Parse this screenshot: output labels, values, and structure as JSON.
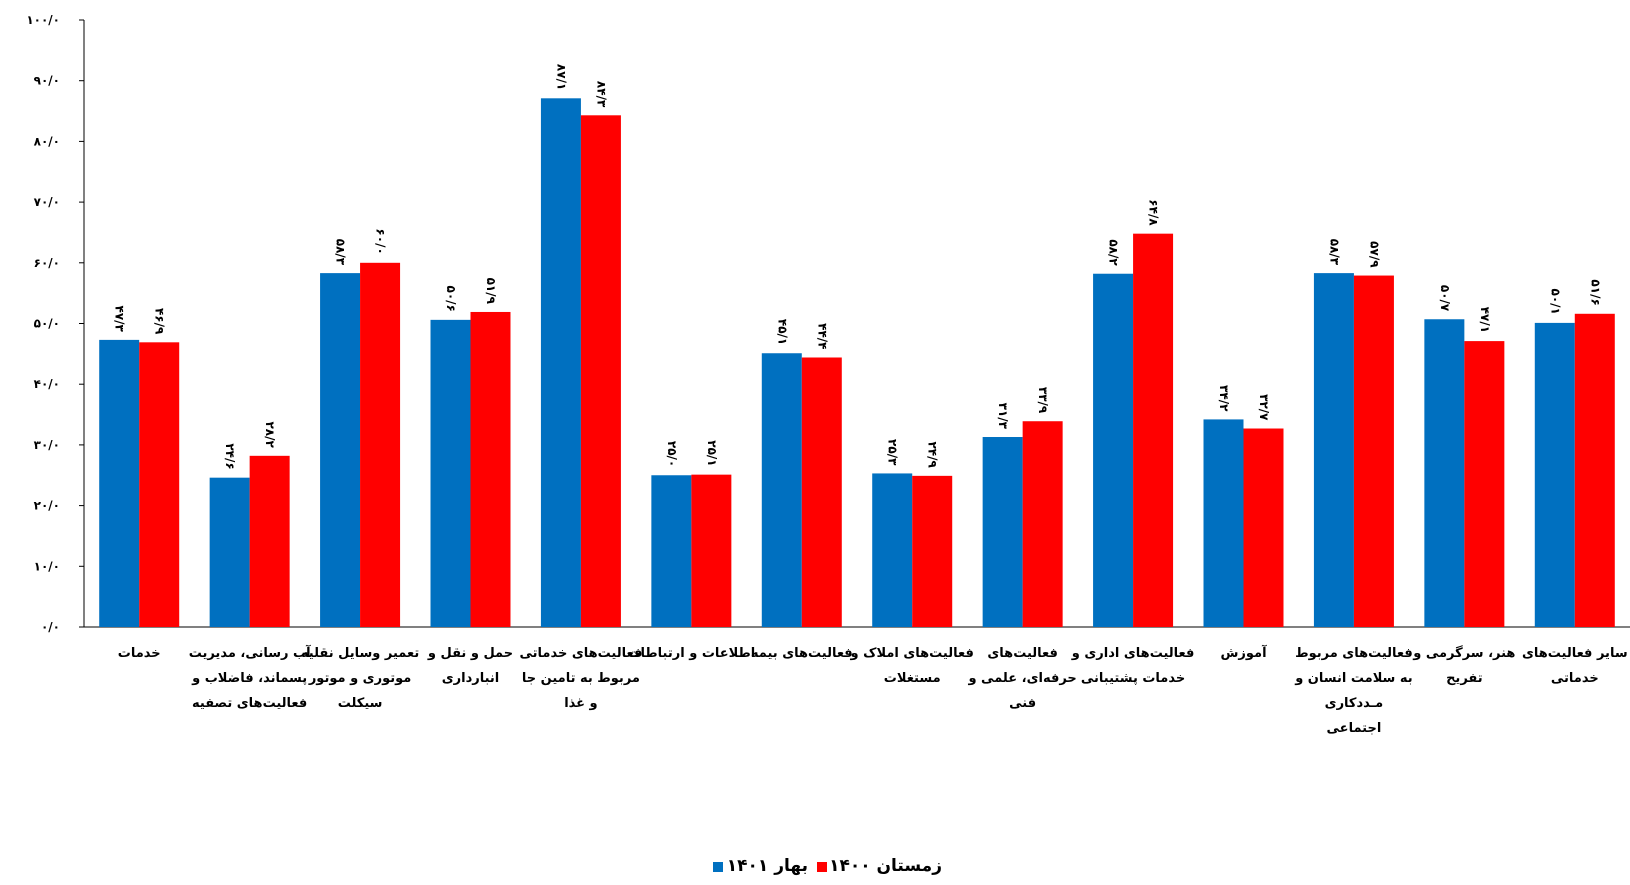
{
  "chart_data": {
    "type": "bar",
    "ylim": [
      0,
      100
    ],
    "yticks": [
      0,
      10,
      20,
      30,
      40,
      50,
      60,
      70,
      80,
      90,
      100
    ],
    "ytick_labels": [
      "۰/۰",
      "۱۰/۰",
      "۲۰/۰",
      "۳۰/۰",
      "۴۰/۰",
      "۵۰/۰",
      "۶۰/۰",
      "۷۰/۰",
      "۸۰/۰",
      "۹۰/۰",
      "۱۰۰/۰"
    ],
    "categories": [
      [
        "خدمات"
      ],
      [
        "آب رسانی، مدیریت",
        "پسماند، فاضلاب و",
        "فعالیت‌های تصفیه"
      ],
      [
        "تعمیر وسایل نقلیه",
        "موتوری و موتور",
        "سیکلت"
      ],
      [
        "حمل و نقل و",
        "انبارداری"
      ],
      [
        "فعالیت‌های خدماتی",
        "مربوط به تامین جا",
        "و غذا"
      ],
      [
        "اطلاعات و ارتباطات"
      ],
      [
        "فعالیت‌های بیمه"
      ],
      [
        "فعالیت‌های املاک و",
        "مستغلات"
      ],
      [
        "فعالیت‌های",
        "حرفه‌ای، علمی و",
        "فنی"
      ],
      [
        "فعالیت‌های اداری و",
        "خدمات پشتیبانی"
      ],
      [
        "آموزش"
      ],
      [
        "فعالیت‌های مربوط",
        "به سلامت انسان و",
        "مـددکاری",
        "اجتماعی"
      ],
      [
        "هنر، سرگرمی و",
        "تفریح"
      ],
      [
        "سایر فعالیت‌های",
        "خدماتی"
      ]
    ],
    "series": [
      {
        "name": "بهار ۱۴۰۱",
        "color": "#0070C0",
        "values": [
          47.3,
          24.6,
          58.3,
          50.6,
          87.1,
          25.0,
          45.1,
          25.3,
          31.3,
          58.2,
          34.2,
          58.3,
          50.7,
          50.1
        ],
        "labels": [
          "۴۷/۳",
          "۲۴/۶",
          "۵۸/۳",
          "۵۰/۶",
          "۸۷/۱",
          "۲۵/۰",
          "۴۵/۱",
          "۲۵/۳",
          "۳۱/۳",
          "۵۸/۲",
          "۳۴/۲",
          "۵۸/۳",
          "۵۰/۷",
          "۵۰/۱"
        ]
      },
      {
        "name": "زمستان ۱۴۰۰",
        "color": "#FF0000",
        "values": [
          46.9,
          28.2,
          60.0,
          51.9,
          84.3,
          25.1,
          44.4,
          24.9,
          33.9,
          64.8,
          32.7,
          57.9,
          47.1,
          51.6
        ],
        "labels": [
          "۴۶/۹",
          "۲۸/۲",
          "۶۰/۰",
          "۵۱/۹",
          "۸۴/۳",
          "۲۵/۱",
          "۴۴/۴",
          "۲۴/۹",
          "۳۳/۹",
          "۶۴/۸",
          "۳۲/۷",
          "۵۷/۹",
          "۴۷/۱",
          "۵۱/۶"
        ]
      }
    ],
    "grid": false,
    "legend_position": "bottom-center"
  }
}
